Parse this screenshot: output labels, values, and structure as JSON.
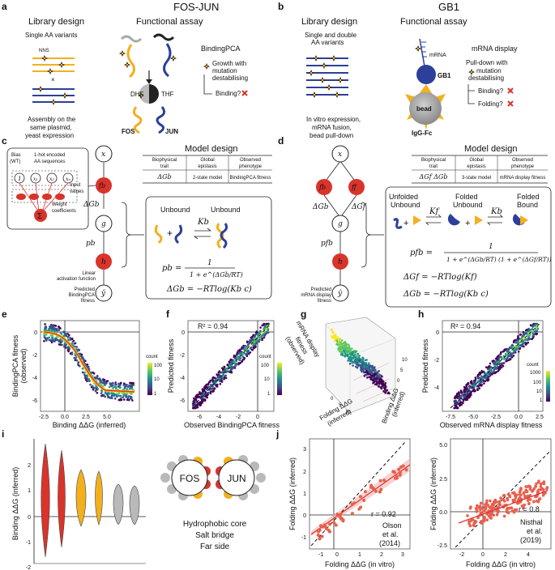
{
  "colors": {
    "red": "#d9342b",
    "yellow": "#f2b01e",
    "blue": "#2c3f9b",
    "gray": "#888888",
    "lightgray": "#b9b9b9"
  },
  "panel_a": {
    "label": "a",
    "title": "FOS-JUN",
    "library_design": "Library design",
    "functional_assay": "Functional assay",
    "single_aa": "Single AA variants",
    "nns": "NNS",
    "assay_name": "BindingPCA",
    "growth_line1": "Growth with",
    "growth_line2": "mutation",
    "growth_line3": "destabilising",
    "binding_q": "Binding?",
    "assembly_line1": "Assembly on the",
    "assembly_line2": "same plasmid,",
    "assembly_line3": "yeast expression",
    "dhf": "DHF",
    "thf": "THF",
    "fos": "FOS",
    "jun": "JUN"
  },
  "panel_b": {
    "label": "b",
    "title": "GB1",
    "library_design": "Library design",
    "functional_assay": "Functional assay",
    "variants_line1": "Single and double",
    "variants_line2": "AA variants",
    "assay_name": "mRNA display",
    "pull_line1": "Pull-down with",
    "pull_line2": "mutation",
    "pull_line3": "destabilising",
    "binding_q": "Binding?",
    "folding_q": "Folding?",
    "mrna": "mRNA",
    "gb1": "GB1",
    "bead": "bead",
    "igg": "IgG-Fc",
    "invitro_line1": "In vitro expression,",
    "invitro_line2": "mRNA fusion,",
    "invitro_line3": "bead pull-down"
  },
  "panel_c": {
    "label": "c",
    "model_design": "Model design",
    "table_headers": [
      [
        "Biophysical",
        "trait"
      ],
      [
        "Global",
        "epistasis"
      ],
      [
        "Observed",
        "phenotype"
      ]
    ],
    "table_row": [
      "ΔGb",
      "2-state model",
      "BindingPCA fitness"
    ],
    "bias_line1": "Bias",
    "bias_line2": "(WT)",
    "onehot_line1": "1-hot encoded",
    "onehot_line2": "AA sequences",
    "input_line1": "Input",
    "input_line2": "values",
    "weight_line1": "Weight",
    "weight_line2": "coefficients",
    "nodes": {
      "x": "x",
      "f": "fb",
      "g": "g",
      "h": "h",
      "y": "ŷ"
    },
    "dg": "ΔGb",
    "pb": "pb",
    "unbound_a": "Unbound",
    "unbound_b": "Unbound",
    "kb": "Kb",
    "linear_line1": "Linear",
    "linear_line2": "activation function",
    "pred_line1": "Predicted",
    "pred_line2": "BindingPCA",
    "pred_line3": "fitness",
    "eq_pb": "pb =",
    "eq_num": "1",
    "eq_den": "1 + e^(ΔGb/RT)",
    "eq_dg": "ΔGb = −RTlog(Kb c)"
  },
  "panel_d": {
    "label": "d",
    "model_design": "Model design",
    "table_headers": [
      [
        "Biophysical",
        "trait"
      ],
      [
        "Global",
        "epistasis"
      ],
      [
        "Observed",
        "phenotype"
      ]
    ],
    "table_row": [
      "ΔGf ΔGb",
      "3-state model",
      "mRNA display fitness"
    ],
    "nodes": {
      "x": "x",
      "fb": "fb",
      "ff": "ff",
      "g": "g",
      "h": "h",
      "y": "ŷ"
    },
    "dgb": "ΔGb",
    "dgf": "ΔGf",
    "pfb": "pfb",
    "pred_line1": "Predicted",
    "pred_line2": "mRNA display",
    "pred_line3": "fitness",
    "state1_a": "Unfolded",
    "state1_b": "Unbound",
    "state2_a": "Folded",
    "state2_b": "Unbound",
    "state3_a": "Folded",
    "state3_b": "Bound",
    "kf": "Kf",
    "kb": "Kb",
    "eq_pfb": "pfb =",
    "eq_num": "1",
    "eq_den": "1 + e^(ΔGb/RT) (1 + e^(ΔGf/RT))",
    "eq_dgf": "ΔGf = −RTlog(Kf)",
    "eq_dgb": "ΔGb = −RTlog(Kb c)"
  },
  "panel_e": {
    "label": "e",
    "ylabel1": "BindingPCA fitness",
    "ylabel2": "(observed)",
    "xlabel": "Binding ΔΔG (inferred)",
    "xticks": [
      "-2.5",
      "0.0",
      "2.5",
      "5.0"
    ],
    "yticks": [
      "0",
      "-2",
      "-4",
      "-6"
    ],
    "legend_title": "count",
    "legend_ticks": [
      "100",
      "10",
      "1"
    ]
  },
  "panel_f": {
    "label": "f",
    "r2": "R² = 0.94",
    "ylabel": "Predicted fitness",
    "xlabel": "Observed BindingPCA fitness",
    "xticks": [
      "-6",
      "-4",
      "-2",
      "0"
    ],
    "yticks": [
      "0",
      "-2",
      "-4",
      "-6"
    ],
    "legend_title": "count",
    "legend_ticks": [
      "100",
      "10",
      "1"
    ]
  },
  "panel_g": {
    "label": "g",
    "zlabel1": "mRNA display",
    "zlabel2": "fitness",
    "zlabel3": "(observed)",
    "xlabel1": "Folding ΔΔG",
    "xlabel2": "(inferred)",
    "ylabel1": "Binding ΔΔG",
    "ylabel2": "(inferred)",
    "ticks": [
      "0",
      "5",
      "10",
      "0",
      "5",
      "10"
    ]
  },
  "panel_h": {
    "label": "h",
    "r2": "R² = 0.94",
    "ylabel": "Predicted fitness",
    "xlabel": "Observed mRNA display fitness",
    "xticks": [
      "-7.5",
      "-5.0",
      "-2.5",
      "0.0",
      "2.5"
    ],
    "yticks": [
      "0",
      "-2",
      "-4"
    ],
    "legend_title": "count",
    "legend_ticks": [
      "1000",
      "100",
      "10",
      "1"
    ]
  },
  "panel_i": {
    "label": "i",
    "ylabel": "Binding ΔΔG (inferred)",
    "yticks": [
      "2",
      "1",
      "0",
      "-1",
      "-2"
    ],
    "fos": "FOS",
    "jun": "JUN",
    "cat1": "Hydrophobic core",
    "cat2": "Salt bridge",
    "cat3": "Far side"
  },
  "panel_j": {
    "label": "j",
    "left": {
      "ylabel": "Folding ΔΔG (inferred)",
      "xlabel": "Folding ΔΔG (in vitro)",
      "r": "r = 0.92",
      "ref1": "Olson",
      "ref2": "et al.",
      "ref3": "(2014)",
      "xticks": [
        "-1",
        "0",
        "1",
        "2",
        "3"
      ],
      "yticks": [
        "3",
        "2",
        "1",
        "0",
        "-1"
      ]
    },
    "right": {
      "ylabel": "Folding ΔΔG (inferred)",
      "xlabel": "Folding ΔΔG (in vitro)",
      "r": "r = 0.8",
      "ref1": "Nisthal",
      "ref2": "et al.",
      "ref3": "(2019)",
      "xticks": [
        "-2",
        "0",
        "2",
        "4"
      ],
      "yticks": [
        "5.0",
        "2.5",
        "0.0",
        "-2.5"
      ]
    }
  }
}
